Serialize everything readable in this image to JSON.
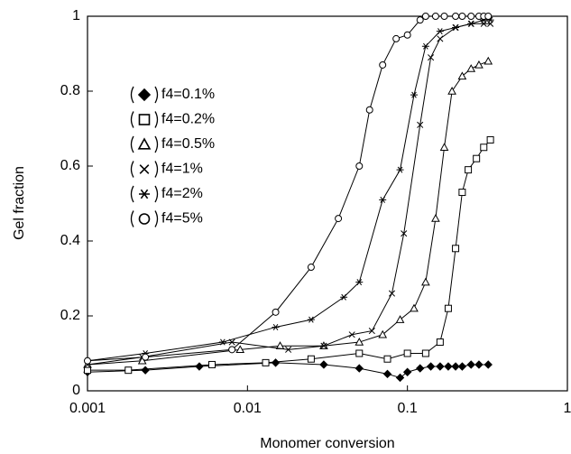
{
  "chart_data": {
    "type": "line",
    "xlabel": "Monomer conversion",
    "ylabel": "Gel fraction",
    "xscale": "log",
    "xlim": [
      0.001,
      1
    ],
    "xticks": [
      0.001,
      0.01,
      0.1,
      1
    ],
    "ylim": [
      0,
      1
    ],
    "yticks": [
      0,
      0.2,
      0.4,
      0.6,
      0.8,
      1
    ],
    "series": [
      {
        "name": "f4=0.1%",
        "color": "#000000",
        "marker": "diamond",
        "x": [
          0.001,
          0.0023,
          0.005,
          0.015,
          0.03,
          0.05,
          0.075,
          0.09,
          0.1,
          0.12,
          0.14,
          0.16,
          0.18,
          0.2,
          0.22,
          0.25,
          0.28,
          0.32
        ],
        "values": [
          0.05,
          0.055,
          0.065,
          0.075,
          0.07,
          0.06,
          0.045,
          0.035,
          0.05,
          0.06,
          0.065,
          0.065,
          0.065,
          0.065,
          0.065,
          0.07,
          0.07,
          0.07
        ]
      },
      {
        "name": "f4=0.2%",
        "color": "#000000",
        "marker": "square",
        "x": [
          0.001,
          0.0018,
          0.006,
          0.013,
          0.025,
          0.05,
          0.075,
          0.1,
          0.13,
          0.16,
          0.18,
          0.2,
          0.22,
          0.24,
          0.27,
          0.3,
          0.33
        ],
        "values": [
          0.055,
          0.055,
          0.07,
          0.075,
          0.085,
          0.1,
          0.085,
          0.1,
          0.1,
          0.13,
          0.22,
          0.38,
          0.53,
          0.59,
          0.62,
          0.65,
          0.67
        ]
      },
      {
        "name": "f4=0.5%",
        "color": "#000000",
        "marker": "triangle",
        "x": [
          0.001,
          0.0022,
          0.009,
          0.016,
          0.03,
          0.05,
          0.07,
          0.09,
          0.11,
          0.13,
          0.15,
          0.17,
          0.19,
          0.22,
          0.25,
          0.28,
          0.32
        ],
        "values": [
          0.07,
          0.08,
          0.11,
          0.12,
          0.12,
          0.13,
          0.15,
          0.19,
          0.22,
          0.29,
          0.46,
          0.65,
          0.8,
          0.84,
          0.86,
          0.87,
          0.88
        ]
      },
      {
        "name": "f4=1%",
        "color": "#000000",
        "marker": "cross",
        "x": [
          0.001,
          0.0022,
          0.008,
          0.018,
          0.03,
          0.045,
          0.06,
          0.08,
          0.095,
          0.12,
          0.14,
          0.16,
          0.2,
          0.25,
          0.3,
          0.33
        ],
        "values": [
          0.07,
          0.09,
          0.13,
          0.11,
          0.12,
          0.15,
          0.16,
          0.26,
          0.42,
          0.71,
          0.89,
          0.94,
          0.97,
          0.98,
          0.98,
          0.98
        ]
      },
      {
        "name": "f4=2%",
        "color": "#000000",
        "marker": "star",
        "x": [
          0.001,
          0.0023,
          0.007,
          0.015,
          0.025,
          0.04,
          0.05,
          0.07,
          0.09,
          0.11,
          0.13,
          0.16,
          0.2,
          0.25,
          0.3,
          0.33
        ],
        "values": [
          0.08,
          0.1,
          0.13,
          0.17,
          0.19,
          0.25,
          0.29,
          0.51,
          0.59,
          0.79,
          0.92,
          0.96,
          0.97,
          0.98,
          0.99,
          0.99
        ]
      },
      {
        "name": "f4=5%",
        "color": "#000000",
        "marker": "circle",
        "x": [
          0.001,
          0.0023,
          0.008,
          0.015,
          0.025,
          0.037,
          0.05,
          0.058,
          0.07,
          0.085,
          0.1,
          0.12,
          0.13,
          0.15,
          0.17,
          0.2,
          0.22,
          0.25,
          0.28,
          0.3,
          0.32
        ],
        "values": [
          0.08,
          0.09,
          0.11,
          0.21,
          0.33,
          0.46,
          0.6,
          0.75,
          0.87,
          0.94,
          0.95,
          0.99,
          1,
          1,
          1,
          1,
          1,
          1,
          1,
          1,
          1
        ]
      }
    ]
  }
}
